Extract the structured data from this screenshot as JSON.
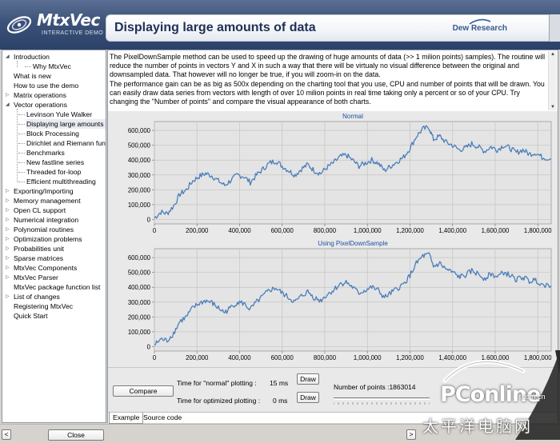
{
  "app": {
    "logo_title": "MtxVec",
    "logo_subtitle": "INTERACTIVE DEMO",
    "page_title": "Displaying large amounts of data",
    "brand": "Dew Research"
  },
  "sidebar": {
    "items": [
      {
        "label": "Introduction",
        "level": 0,
        "expander": "open"
      },
      {
        "label": "Why MtxVec",
        "level": 2,
        "expander": "none"
      },
      {
        "label": "What is new",
        "level": 0,
        "expander": "none"
      },
      {
        "label": "How to use the demo",
        "level": 0,
        "expander": "none"
      },
      {
        "label": "Matrix operations",
        "level": 0,
        "expander": "closed"
      },
      {
        "label": "Vector operations",
        "level": 0,
        "expander": "open"
      },
      {
        "label": "Levinson Yule Walker",
        "level": 1,
        "expander": "none"
      },
      {
        "label": "Displaying large amounts of",
        "level": 1,
        "expander": "none",
        "selected": true
      },
      {
        "label": "Block Processing",
        "level": 1,
        "expander": "none"
      },
      {
        "label": "Dirichlet and Riemann funct",
        "level": 1,
        "expander": "none"
      },
      {
        "label": "Benchmarks",
        "level": 1,
        "expander": "none"
      },
      {
        "label": "New fastline series",
        "level": 1,
        "expander": "none"
      },
      {
        "label": "Threaded for-loop",
        "level": 1,
        "expander": "none"
      },
      {
        "label": "Efficient multithreading",
        "level": 1,
        "expander": "none"
      },
      {
        "label": "Exporting/Importing",
        "level": 0,
        "expander": "closed"
      },
      {
        "label": "Memory management",
        "level": 0,
        "expander": "closed"
      },
      {
        "label": "Open CL support",
        "level": 0,
        "expander": "closed"
      },
      {
        "label": "Numerical integration",
        "level": 0,
        "expander": "closed"
      },
      {
        "label": "Polynomial routines",
        "level": 0,
        "expander": "closed"
      },
      {
        "label": "Optimization problems",
        "level": 0,
        "expander": "closed"
      },
      {
        "label": "Probabilities unit",
        "level": 0,
        "expander": "closed"
      },
      {
        "label": "Sparse matrices",
        "level": 0,
        "expander": "closed"
      },
      {
        "label": "MtxVec Components",
        "level": 0,
        "expander": "closed"
      },
      {
        "label": "MtxVec Parser",
        "level": 0,
        "expander": "closed"
      },
      {
        "label": "MtxVec package function list",
        "level": 0,
        "expander": "none"
      },
      {
        "label": "List of changes",
        "level": 0,
        "expander": "closed"
      },
      {
        "label": "Registering MtxVec",
        "level": 0,
        "expander": "none"
      },
      {
        "label": "Quick Start",
        "level": 0,
        "expander": "none"
      }
    ]
  },
  "description": {
    "p1": "The PixelDownSample method can be used to speed up the drawing of huge amounts of data (>> 1 milion points) samples). The routine will reduce the number of points in vectors Y and X in such a way that there will be virtualy no visual difference between the original and downsampled data. That however will no longer be true, if you will zoom-in on the data.",
    "p2": "The performance gain can be as big as 500x depending on the charting tool that you use, CPU and number of points that will be drawn. You can easily draw data series from vectors with length of over 10 milion points in real time taking only a percent or so of your CPU. Try changing the \"Number of points\" and compare the visual appearance of both charts."
  },
  "chart_data": [
    {
      "type": "line",
      "title": "Normal",
      "xlabel": "",
      "ylabel": "",
      "x_ticks": [
        0,
        200000,
        400000,
        600000,
        800000,
        1000000,
        1200000,
        1400000,
        1600000,
        1800000
      ],
      "x_tick_labels": [
        "0",
        "200,000",
        "400,000",
        "600,000",
        "800,000",
        "1,000,000",
        "1,200,000",
        "1,400,000",
        "1,600,000",
        "1,800,000"
      ],
      "y_ticks": [
        0,
        100000,
        200000,
        300000,
        400000,
        500000,
        600000
      ],
      "y_tick_labels": [
        "0",
        "100,000",
        "200,000",
        "300,000",
        "400,000",
        "500,000",
        "600,000"
      ],
      "xlim": [
        0,
        1863014
      ],
      "ylim": [
        -30000,
        660000
      ],
      "grid": true,
      "color": "#4a7ebb",
      "series": [
        {
          "x": [
            0,
            30000,
            60000,
            90000,
            120000,
            150000,
            180000,
            210000,
            240000,
            270000,
            300000,
            330000,
            360000,
            390000,
            420000,
            450000,
            480000,
            510000,
            540000,
            570000,
            600000,
            630000,
            660000,
            690000,
            720000,
            750000,
            780000,
            810000,
            840000,
            870000,
            900000,
            930000,
            960000,
            990000,
            1020000,
            1050000,
            1080000,
            1110000,
            1140000,
            1170000,
            1200000,
            1230000,
            1260000,
            1290000,
            1310000,
            1340000,
            1370000,
            1400000,
            1430000,
            1460000,
            1490000,
            1520000,
            1550000,
            1580000,
            1610000,
            1640000,
            1670000,
            1700000,
            1730000,
            1760000,
            1790000,
            1820000,
            1863014
          ],
          "y": [
            10000,
            50000,
            40000,
            90000,
            170000,
            200000,
            260000,
            290000,
            310000,
            295000,
            260000,
            230000,
            265000,
            300000,
            290000,
            250000,
            300000,
            340000,
            380000,
            395000,
            360000,
            330000,
            300000,
            340000,
            370000,
            330000,
            310000,
            350000,
            380000,
            420000,
            435000,
            400000,
            360000,
            380000,
            400000,
            380000,
            330000,
            360000,
            390000,
            420000,
            480000,
            560000,
            610000,
            620000,
            540000,
            560000,
            520000,
            500000,
            470000,
            480000,
            510000,
            490000,
            460000,
            490000,
            470000,
            500000,
            480000,
            450000,
            470000,
            440000,
            450000,
            420000,
            410000
          ]
        }
      ]
    },
    {
      "type": "line",
      "title": "Using PixelDownSample",
      "xlabel": "",
      "ylabel": "",
      "x_ticks": [
        0,
        200000,
        400000,
        600000,
        800000,
        1000000,
        1200000,
        1400000,
        1600000,
        1800000
      ],
      "x_tick_labels": [
        "0",
        "200,000",
        "400,000",
        "600,000",
        "800,000",
        "1,000,000",
        "1,200,000",
        "1,400,000",
        "1,600,000",
        "1,800,000"
      ],
      "y_ticks": [
        0,
        100000,
        200000,
        300000,
        400000,
        500000,
        600000
      ],
      "y_tick_labels": [
        "0",
        "100,000",
        "200,000",
        "300,000",
        "400,000",
        "500,000",
        "600,000"
      ],
      "xlim": [
        0,
        1863014
      ],
      "ylim": [
        -30000,
        660000
      ],
      "grid": true,
      "color": "#4a7ebb",
      "series": [
        {
          "x": [
            0,
            30000,
            60000,
            90000,
            120000,
            150000,
            180000,
            210000,
            240000,
            270000,
            300000,
            330000,
            360000,
            390000,
            420000,
            450000,
            480000,
            510000,
            540000,
            570000,
            600000,
            630000,
            660000,
            690000,
            720000,
            750000,
            780000,
            810000,
            840000,
            870000,
            900000,
            930000,
            960000,
            990000,
            1020000,
            1050000,
            1080000,
            1110000,
            1140000,
            1170000,
            1200000,
            1230000,
            1260000,
            1290000,
            1310000,
            1340000,
            1370000,
            1400000,
            1430000,
            1460000,
            1490000,
            1520000,
            1550000,
            1580000,
            1610000,
            1640000,
            1670000,
            1700000,
            1730000,
            1760000,
            1790000,
            1820000,
            1863014
          ],
          "y": [
            10000,
            50000,
            40000,
            90000,
            170000,
            200000,
            260000,
            290000,
            310000,
            295000,
            260000,
            230000,
            265000,
            300000,
            290000,
            250000,
            300000,
            340000,
            380000,
            395000,
            360000,
            330000,
            300000,
            340000,
            370000,
            330000,
            310000,
            350000,
            380000,
            420000,
            435000,
            400000,
            360000,
            380000,
            400000,
            380000,
            330000,
            360000,
            390000,
            420000,
            480000,
            560000,
            610000,
            620000,
            540000,
            560000,
            520000,
            500000,
            470000,
            480000,
            510000,
            490000,
            460000,
            490000,
            470000,
            500000,
            480000,
            450000,
            470000,
            440000,
            450000,
            420000,
            410000
          ]
        }
      ]
    }
  ],
  "controls": {
    "compare_label": "Compare",
    "normal_time_label": "Time for \"normal\" plotting :",
    "normal_time_value": "15 ms",
    "optimized_time_label": "Time for optimized plotting :",
    "optimized_time_value": "0 ms",
    "draw1_label": "Draw",
    "draw2_label": "Draw",
    "points_label": "Number of points :1863014"
  },
  "tabs": [
    {
      "label": "Example",
      "active": true
    },
    {
      "label": "Source code",
      "active": false
    }
  ],
  "footer": {
    "close_label": "Close",
    "left_arrow": "<",
    "right_arrow": ">"
  },
  "watermark": {
    "brand": "PConline",
    "domain": ".com.cn",
    "chinese": "太平洋电脑网"
  }
}
